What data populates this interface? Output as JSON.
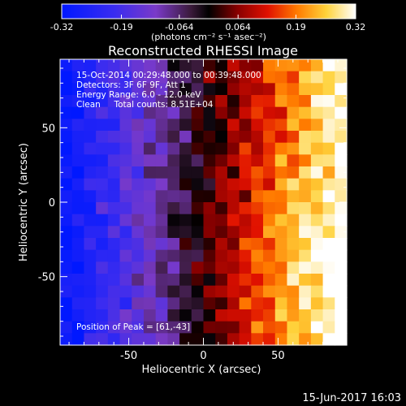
{
  "chart_data": {
    "type": "heatmap",
    "title": "Reconstructed RHESSI Image",
    "xlabel": "Heliocentric X (arcsec)",
    "ylabel": "Heliocentric Y (arcsec)",
    "xlim": [
      -96,
      96
    ],
    "ylim": [
      -96,
      96
    ],
    "x_ticks": [
      "-50",
      "0",
      "50"
    ],
    "x_tick_values": [
      -50,
      0,
      50
    ],
    "y_ticks": [
      "-50",
      "0",
      "50"
    ],
    "y_tick_values": [
      -50,
      0,
      50
    ],
    "colorbar": {
      "unit_label": "(photons cm⁻² s⁻¹ asec⁻²)",
      "range": [
        -0.32,
        0.32
      ],
      "tick_labels": [
        "-0.32",
        "-0.19",
        "-0.064",
        "0.064",
        "0.19",
        "0.32"
      ],
      "tick_values": [
        -0.32,
        -0.19,
        -0.064,
        0.064,
        0.19,
        0.32
      ]
    },
    "annotations": {
      "time_range": "15-Oct-2014 00:29:48.000 to 00:39:48.000",
      "detectors": "Detectors: 3F 6F 9F, Att 1",
      "energy_range": "Energy Range: 6.0 - 12.0 keV",
      "method_counts": "Clean     Total counts: 8.51E+04",
      "peak": "Position of Peak = [61,-43]"
    },
    "peak_position": [
      61,
      -43
    ],
    "image_model": "smooth gradient with noise: flux rises from about -0.32 at the left edge (x = -96) to about 0.32 near the peak, crossing zero near x = -10; ~24×24 cell grid",
    "grid_cells": 24
  },
  "footer": {
    "timestamp": "15-Jun-2017 16:03"
  }
}
